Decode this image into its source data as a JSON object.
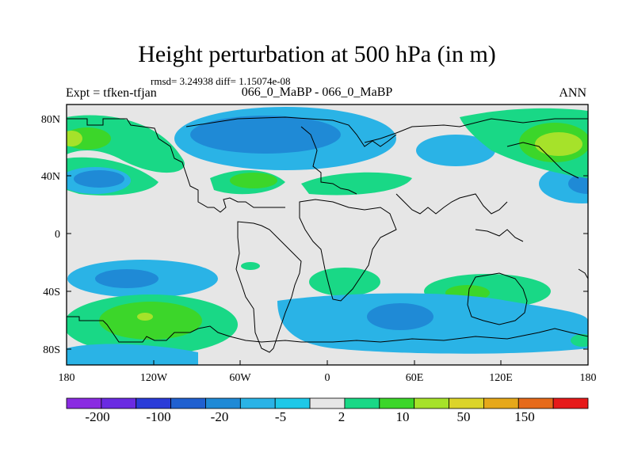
{
  "title": "Height perturbation at 500 hPa (in m)",
  "stats": "rmsd= 3.24938 diff= 1.15074e-08",
  "left_label": "Expt = tfken-tfjan",
  "center_label": "066_0_MaBP - 066_0_MaBP",
  "right_label": "ANN",
  "lat_labels": [
    "80N",
    "40N",
    "0",
    "40S",
    "80S"
  ],
  "lon_labels": [
    "180",
    "120W",
    "60W",
    "0",
    "60E",
    "120E",
    "180"
  ],
  "colorbar": {
    "colors": [
      "#8a2be2",
      "#6a2be2",
      "#2a3bd8",
      "#2060d0",
      "#1f8ad6",
      "#2ab3e6",
      "#1ec8e8",
      "#e6e6e6",
      "#19d886",
      "#3cd62a",
      "#a6e22a",
      "#dcd42a",
      "#e6a81a",
      "#e66a1a",
      "#e61a1a"
    ],
    "labels": [
      "-200",
      "-100",
      "-20",
      "-5",
      "2",
      "10",
      "50",
      "150"
    ]
  },
  "legend_colors": {
    "neutral": "#e6e6e6",
    "light_blue": "#2ab3e6",
    "blue": "#1f8ad6",
    "green_light": "#19d886",
    "green": "#3cd62a",
    "yellow_green": "#a6e22a"
  }
}
